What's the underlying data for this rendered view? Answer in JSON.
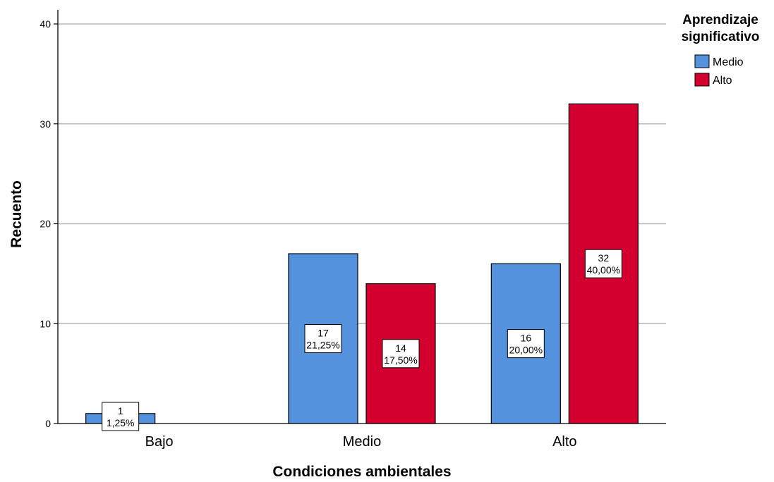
{
  "chart_data": {
    "type": "bar",
    "title": "",
    "xlabel": "Condiciones ambientales",
    "ylabel": "Recuento",
    "ylim": [
      0,
      40
    ],
    "yticks": [
      "0",
      "10",
      "20",
      "30",
      "40"
    ],
    "grid": true,
    "categories": [
      "Bajo",
      "Medio",
      "Alto"
    ],
    "legend": {
      "title_lines": [
        "Aprendizaje",
        "significativo"
      ],
      "placement": "right"
    },
    "series": [
      {
        "name": "Medio",
        "color": "#5592DE",
        "values": [
          1,
          17,
          16
        ],
        "percent_labels": [
          "1,25%",
          "21,25%",
          "20,00%"
        ]
      },
      {
        "name": "Alto",
        "color": "#D3002F",
        "values": [
          0,
          14,
          32
        ],
        "percent_labels": [
          "",
          "17,50%",
          "40,00%"
        ]
      }
    ]
  }
}
